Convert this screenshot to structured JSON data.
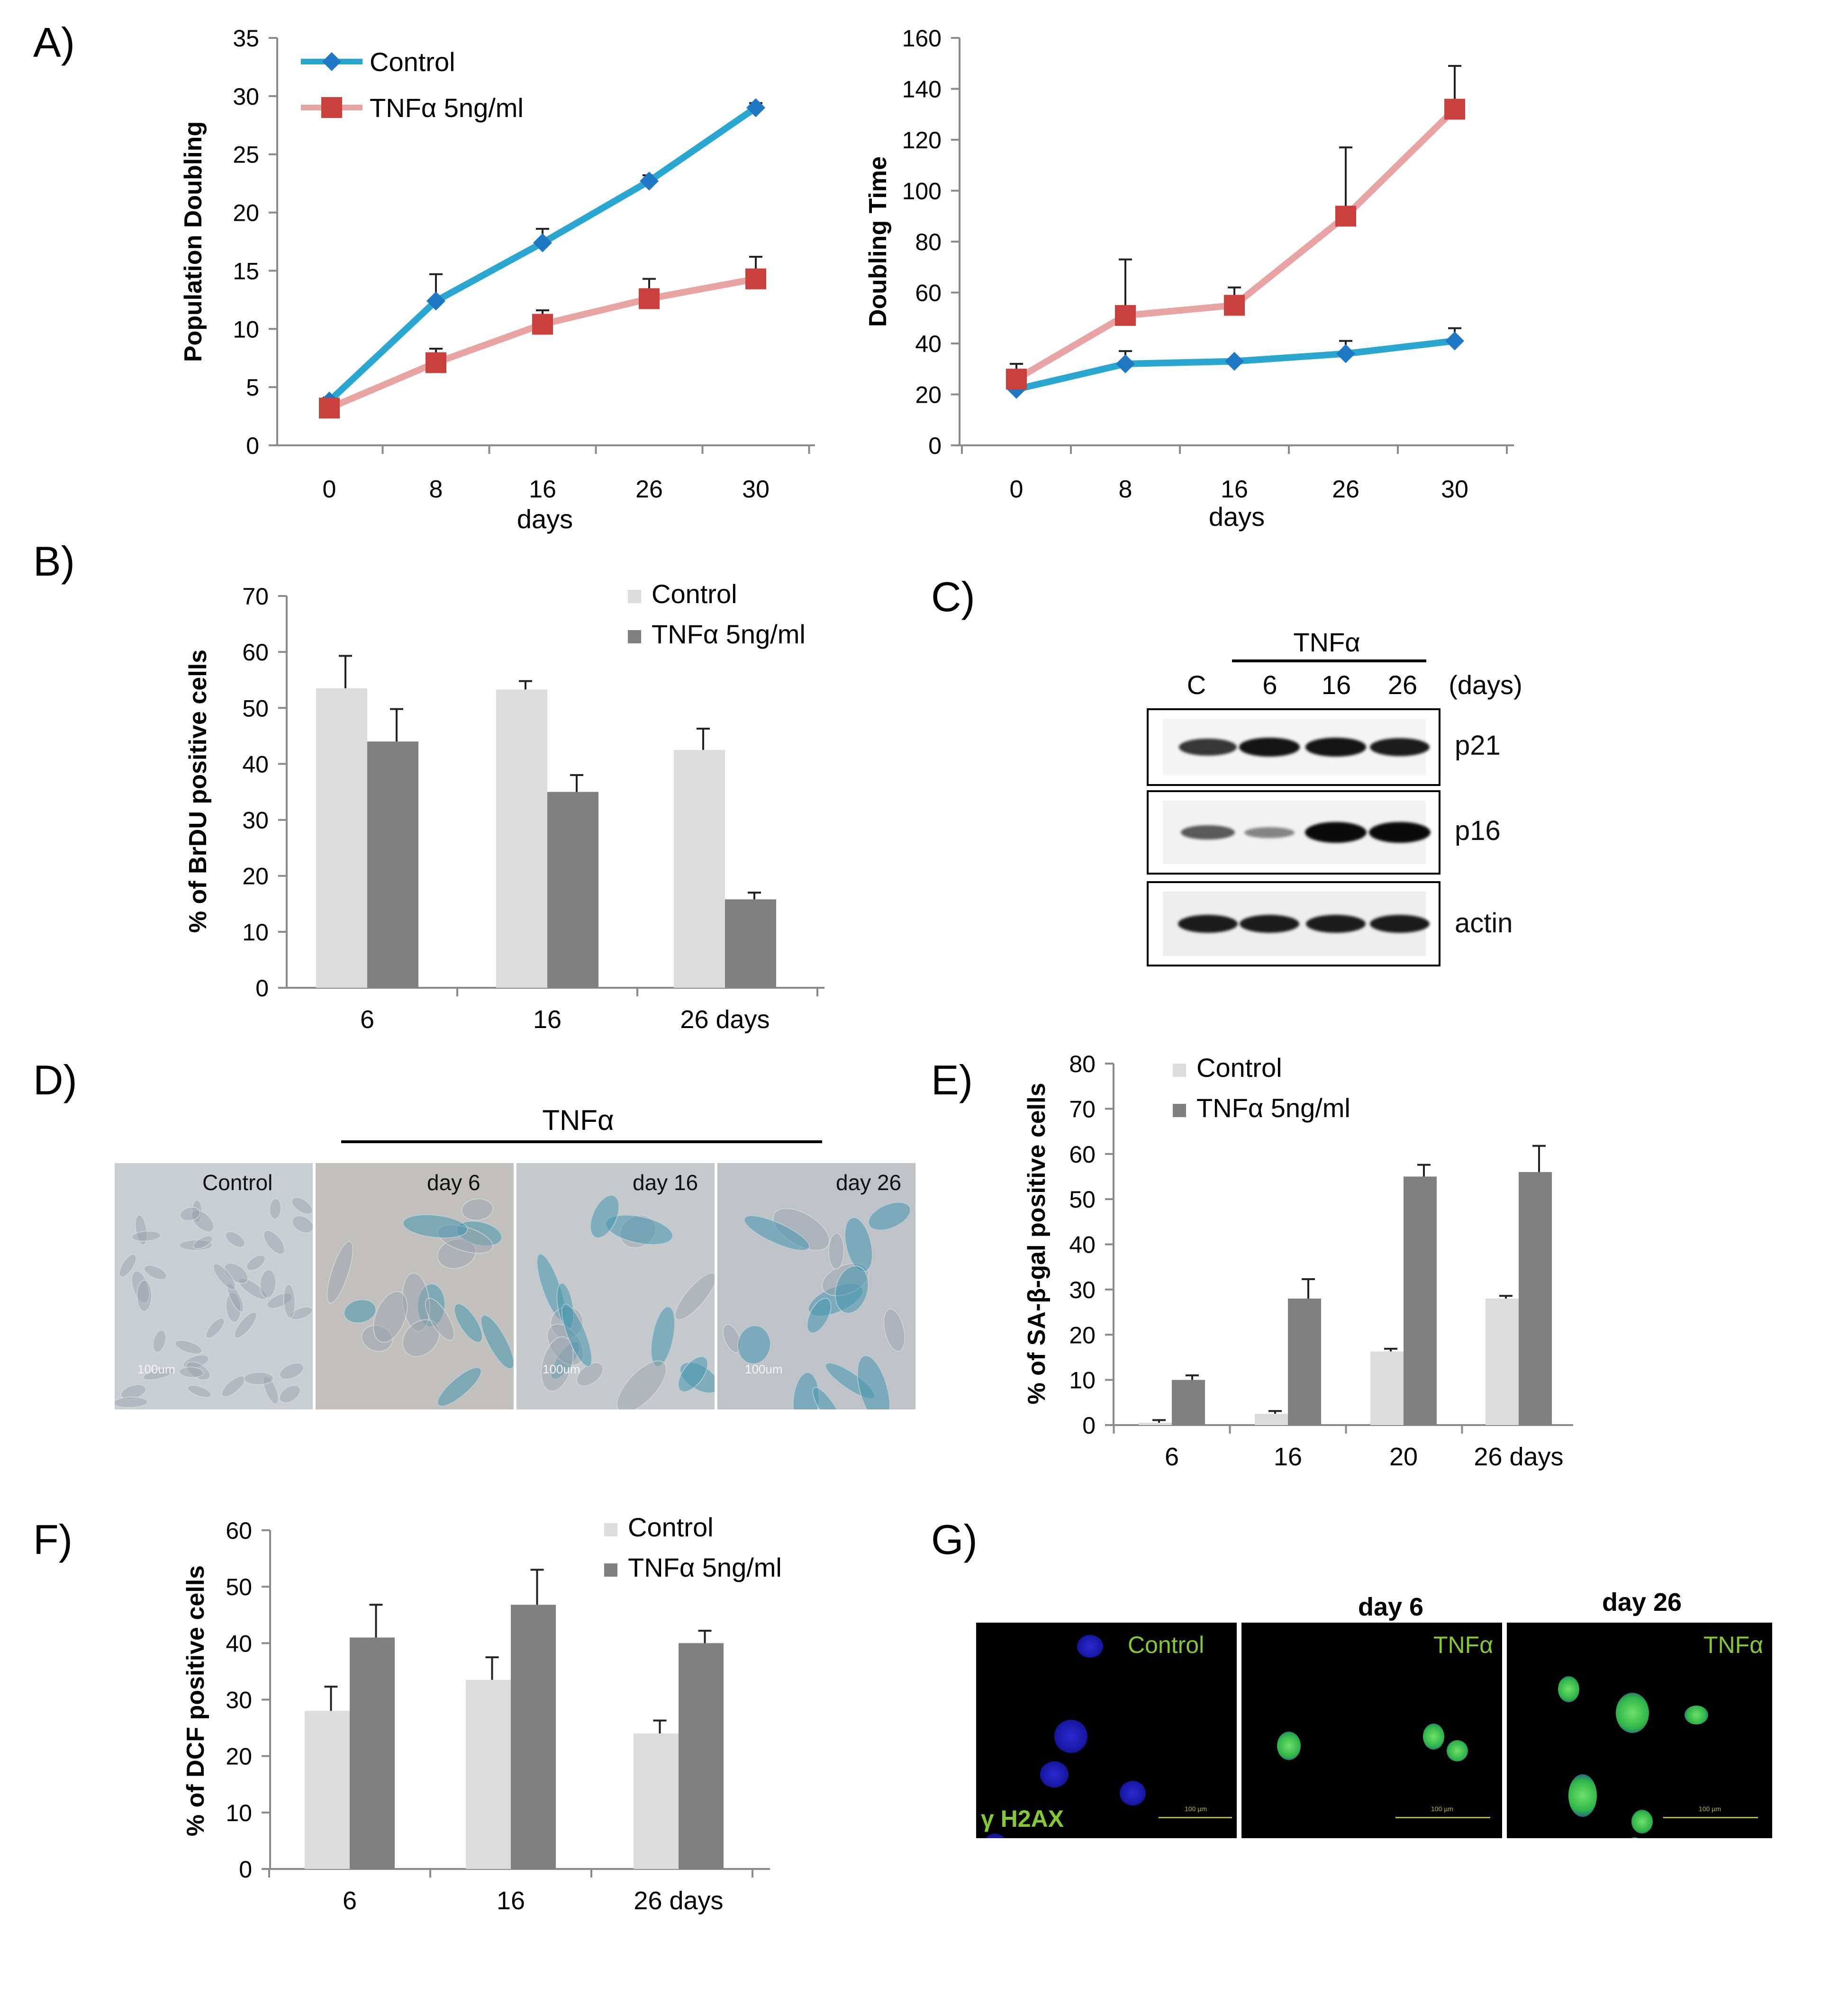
{
  "colors": {
    "control": "#2aa7d1",
    "control_marker": "#1f78c4",
    "tnf": "#e8a3a3",
    "tnf_marker": "#c9403c",
    "bar_light": "#dcdcdc",
    "bar_dark": "#808080",
    "fluor_label": "#86c832",
    "nucleus_blue": "#1f1fb0",
    "nucleus_green": "#3fd24a"
  },
  "panels": {
    "A": {
      "label": "A)"
    },
    "B": {
      "label": "B)"
    },
    "C": {
      "label": "C)"
    },
    "D": {
      "label": "D)"
    },
    "E": {
      "label": "E)"
    },
    "F": {
      "label": "F)"
    },
    "G": {
      "label": "G)"
    }
  },
  "chart_data": [
    {
      "id": "A1",
      "type": "line",
      "x": [
        "0",
        "8",
        "16",
        "26",
        "30"
      ],
      "xlabel": "days",
      "ylabel": "Population Doubling",
      "ylim": [
        0,
        35
      ],
      "yticks": [
        "0",
        "5",
        "10",
        "15",
        "20",
        "25",
        "30",
        "35"
      ],
      "legend": "top-left",
      "series": [
        {
          "name": "Control",
          "values": [
            3.8,
            12.4,
            17.4,
            22.7,
            29.0
          ],
          "err": [
            0.3,
            2.3,
            1.2,
            0.5,
            0.4
          ]
        },
        {
          "name": "TNFα 5ng/ml",
          "values": [
            3.2,
            7.1,
            10.4,
            12.6,
            14.3
          ],
          "err": [
            0.3,
            1.2,
            1.2,
            1.7,
            1.9
          ]
        }
      ]
    },
    {
      "id": "A2",
      "type": "line",
      "x": [
        "0",
        "8",
        "16",
        "26",
        "30"
      ],
      "xlabel": "days",
      "ylabel": "Doubling Time",
      "ylim": [
        0,
        160
      ],
      "yticks": [
        "0",
        "20",
        "40",
        "60",
        "80",
        "100",
        "120",
        "140",
        "160"
      ],
      "series": [
        {
          "name": "Control",
          "values": [
            22,
            32,
            33,
            36,
            41
          ],
          "err": [
            0,
            5,
            0,
            5,
            5
          ]
        },
        {
          "name": "TNFα 5ng/ml",
          "values": [
            26,
            51,
            55,
            90,
            132
          ],
          "err": [
            6,
            22,
            7,
            27,
            17
          ]
        }
      ]
    },
    {
      "id": "B",
      "type": "bar",
      "categories": [
        "6",
        "16",
        "26 days"
      ],
      "ylabel": "% of BrDU positive cells",
      "ylim": [
        0,
        70
      ],
      "yticks": [
        "0",
        "10",
        "20",
        "30",
        "40",
        "50",
        "60",
        "70"
      ],
      "legend": "top-right",
      "series": [
        {
          "name": "Control",
          "values": [
            53.5,
            53.3,
            42.5
          ],
          "err": [
            5.8,
            1.5,
            3.8
          ]
        },
        {
          "name": "TNFα 5ng/ml",
          "values": [
            44,
            35,
            15.8
          ],
          "err": [
            5.8,
            3,
            1.2
          ]
        }
      ]
    },
    {
      "id": "E",
      "type": "bar",
      "categories": [
        "6",
        "16",
        "20",
        "26 days"
      ],
      "ylabel": "% of SA-β-gal  positive  cells",
      "ylim": [
        0,
        80
      ],
      "yticks": [
        "0",
        "10",
        "20",
        "30",
        "40",
        "50",
        "60",
        "70",
        "80"
      ],
      "legend": "top-left",
      "series": [
        {
          "name": "Control",
          "values": [
            0.5,
            2.5,
            16.3,
            28
          ],
          "err": [
            0.6,
            0.6,
            0.6,
            0.6
          ]
        },
        {
          "name": "TNFα 5ng/ml",
          "values": [
            10,
            28,
            55,
            56
          ],
          "err": [
            1,
            4.3,
            2.6,
            5.8
          ]
        }
      ]
    },
    {
      "id": "F",
      "type": "bar",
      "categories": [
        "6",
        "16",
        "26 days"
      ],
      "ylabel": "% of DCF positive cells",
      "ylim": [
        0,
        60
      ],
      "yticks": [
        "0",
        "10",
        "20",
        "30",
        "40",
        "50",
        "60"
      ],
      "legend": "top-right",
      "series": [
        {
          "name": "Control",
          "values": [
            28,
            33.5,
            24
          ],
          "err": [
            4.3,
            4,
            2.3
          ]
        },
        {
          "name": "TNFα 5ng/ml",
          "values": [
            41,
            46.8,
            40
          ],
          "err": [
            5.8,
            6.2,
            2.2
          ]
        }
      ]
    }
  ],
  "western": {
    "header": "TNFα",
    "lanes": [
      "C",
      "6",
      "16",
      "26"
    ],
    "unit": "(days)",
    "rows": [
      {
        "label": "p21",
        "intensity": [
          0.75,
          0.95,
          0.95,
          0.9
        ]
      },
      {
        "label": "p16",
        "intensity": [
          0.55,
          0.3,
          1.0,
          1.0
        ]
      },
      {
        "label": "actin",
        "intensity": [
          0.9,
          0.9,
          0.9,
          0.9
        ]
      }
    ]
  },
  "stain": {
    "header": "TNFα",
    "panels": [
      {
        "label": "Control",
        "scale": "100um"
      },
      {
        "label": "day 6",
        "scale": ""
      },
      {
        "label": "day 16",
        "scale": "100um"
      },
      {
        "label": "day 26",
        "scale": "100um"
      }
    ]
  },
  "fluor": {
    "headers": [
      "",
      "day 6",
      "day 26"
    ],
    "panels": [
      {
        "label": "Control",
        "marker": "γ H2AX",
        "scale": "100 µm"
      },
      {
        "label": "TNFα",
        "marker": "",
        "scale": "100 µm"
      },
      {
        "label": "TNFα",
        "marker": "",
        "scale": "100 µm"
      }
    ]
  }
}
